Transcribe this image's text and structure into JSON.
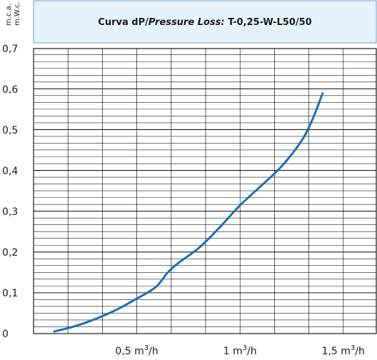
{
  "chart_data": {
    "type": "line",
    "title": {
      "part1": "Curva dP/",
      "part2": "Pressure Loss:",
      "part3": " T-0,25-W-L50/50"
    },
    "ylabel": [
      "m.c.a.",
      "m.W.c."
    ],
    "xlim": [
      0,
      1.66
    ],
    "ylim": [
      0,
      0.7
    ],
    "x_ticks": [
      {
        "value": 0.5,
        "base": "0,5 m",
        "sup": "3",
        "tail": "/h"
      },
      {
        "value": 1.0,
        "base": "1 m",
        "sup": "3",
        "tail": "/h"
      },
      {
        "value": 1.5,
        "base": "1,5 m",
        "sup": "3",
        "tail": "/h"
      }
    ],
    "y_ticks": [
      {
        "value": 0,
        "label": "0"
      },
      {
        "value": 0.1,
        "label": "0,1"
      },
      {
        "value": 0.2,
        "label": "0,2"
      },
      {
        "value": 0.3,
        "label": "0,3"
      },
      {
        "value": 0.4,
        "label": "0,4"
      },
      {
        "value": 0.5,
        "label": "0,5"
      },
      {
        "value": 0.6,
        "label": "0,6"
      },
      {
        "value": 0.7,
        "label": "0,7"
      }
    ],
    "grid": true,
    "x_grid_step": 0.1667,
    "y_grid_step": 0.0167,
    "line_color": "#1c6fb7",
    "title_bg": "#e6f2fc",
    "series": [
      {
        "x": [
          0.1,
          0.2,
          0.3,
          0.4,
          0.5,
          0.55,
          0.6,
          0.65,
          0.7,
          0.8,
          0.9,
          1.0,
          1.1,
          1.2,
          1.3,
          1.35,
          1.4
        ],
        "values": [
          0.005,
          0.018,
          0.036,
          0.058,
          0.086,
          0.1,
          0.118,
          0.15,
          0.173,
          0.21,
          0.26,
          0.315,
          0.362,
          0.41,
          0.475,
          0.525,
          0.59
        ]
      }
    ]
  }
}
